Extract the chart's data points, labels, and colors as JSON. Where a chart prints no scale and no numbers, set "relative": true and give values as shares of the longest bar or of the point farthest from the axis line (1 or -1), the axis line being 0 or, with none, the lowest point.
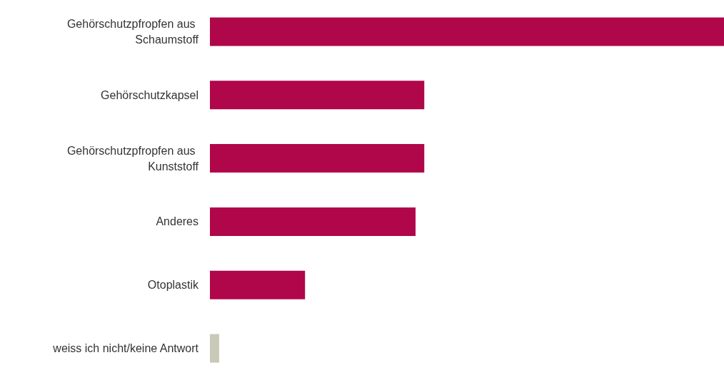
{
  "chart_data": {
    "type": "bar",
    "orientation": "horizontal",
    "relative": true,
    "categories": [
      "Gehörschutzpfropfen aus Schaumstoff",
      "Gehörschutzkapsel",
      "Gehörschutzpfropfen aus Kunststoff",
      "Anderes",
      "Otoplastik",
      "weiss ich nicht/keine Antwort"
    ],
    "values": [
      1,
      0.417,
      0.417,
      0.4,
      0.185,
      0.018
    ],
    "colors": [
      "#b0064a",
      "#b0064a",
      "#b0064a",
      "#b0064a",
      "#b0064a",
      "#c9c9b8"
    ],
    "data_labels": false
  }
}
